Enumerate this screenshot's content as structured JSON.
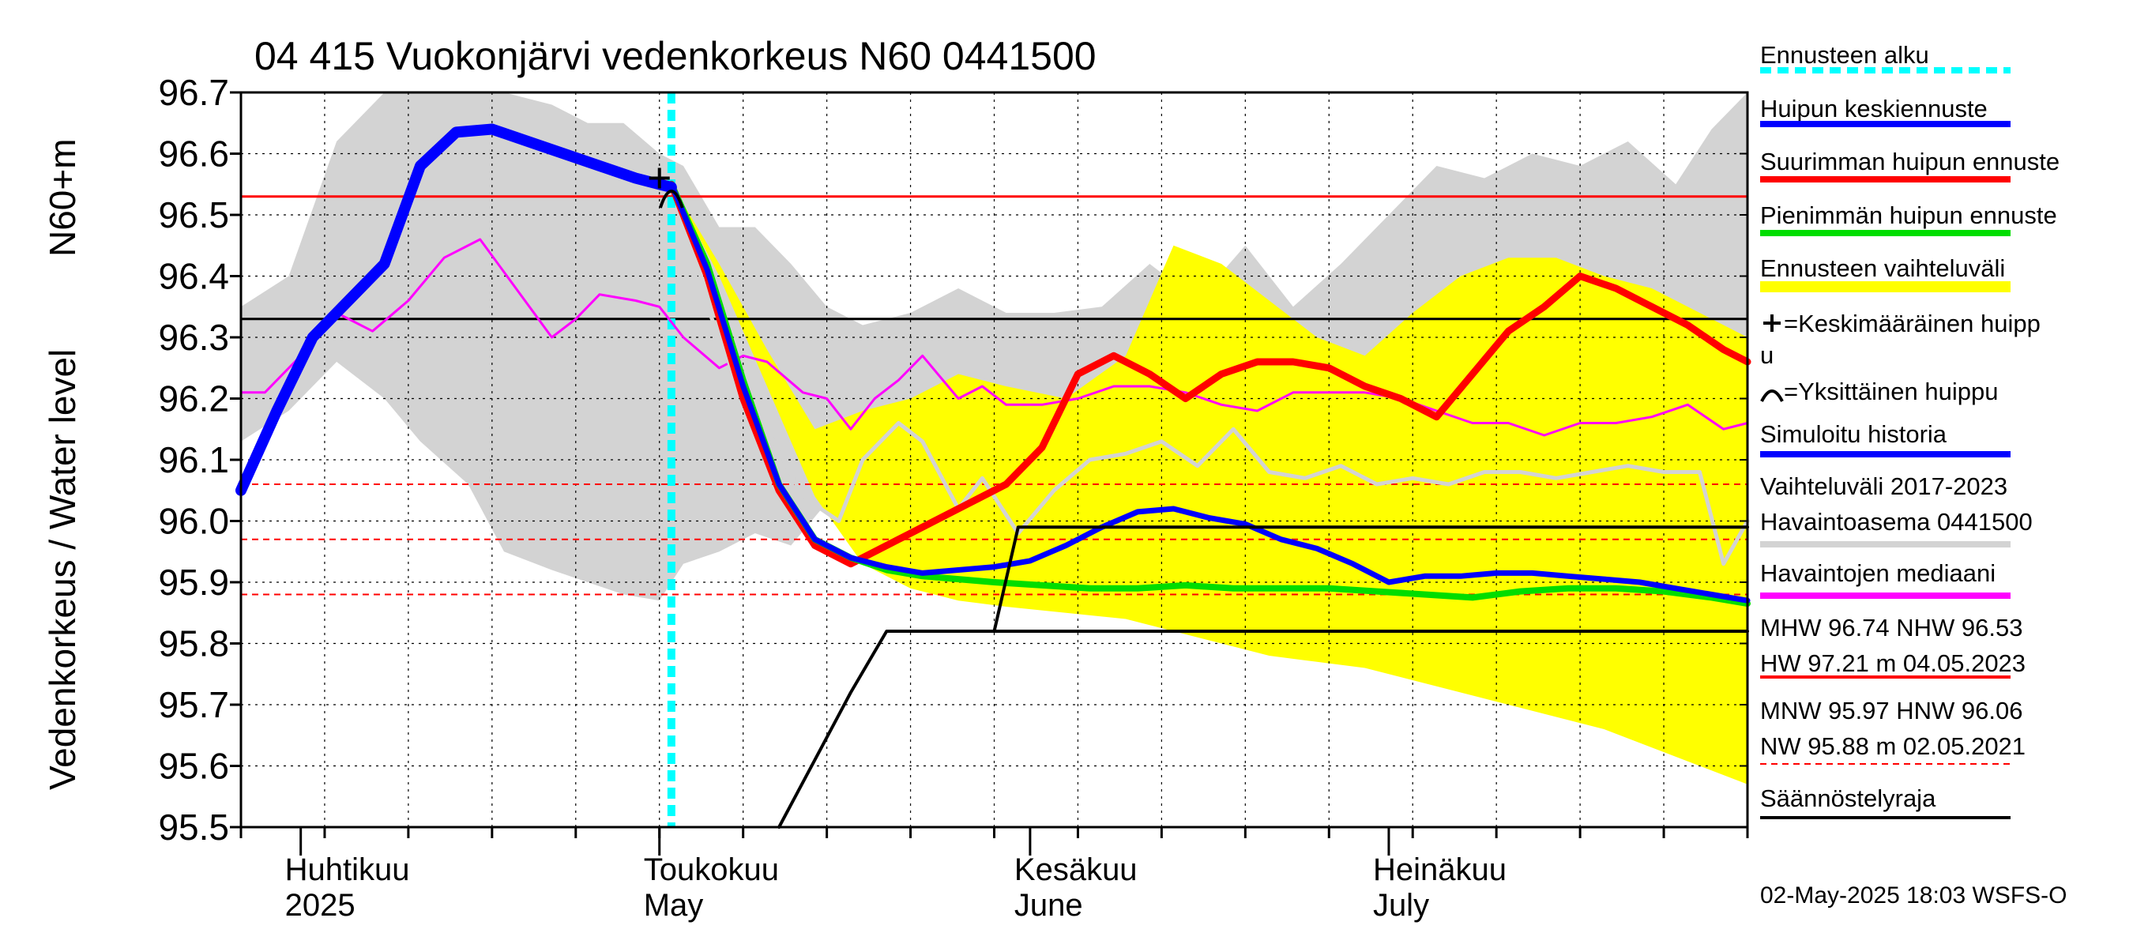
{
  "chart_data": {
    "type": "line",
    "title": "04 415 Vuokonjärvi vedenkorkeus N60 0441500",
    "ylabel": "Vedenkorkeus / Water level",
    "ylabel_unit": "N60+m",
    "ylim": [
      95.5,
      96.7
    ],
    "yticks": [
      "96.7",
      "96.6",
      "96.5",
      "96.4",
      "96.3",
      "96.2",
      "96.1",
      "96.0",
      "95.9",
      "95.8",
      "95.7",
      "95.6",
      "95.5"
    ],
    "xlim": [
      "2025-03-27",
      "2025-07-31"
    ],
    "month_labels": [
      {
        "date": "2025-04-01",
        "fi": "Huhtikuu",
        "en": "2025"
      },
      {
        "date": "2025-05-01",
        "fi": "Toukokuu",
        "en": "May"
      },
      {
        "date": "2025-06-01",
        "fi": "Kesäkuu",
        "en": "June"
      },
      {
        "date": "2025-07-01",
        "fi": "Heinäkuu",
        "en": "July"
      }
    ],
    "grid": true,
    "forecast_start": "2025-05-02",
    "reference_lines": [
      {
        "level": 96.53,
        "style": "solid",
        "color": "#ff0000"
      },
      {
        "level": 96.33,
        "style": "solid",
        "color": "#000000"
      },
      {
        "level": 96.06,
        "style": "dashed",
        "color": "#ff0000"
      },
      {
        "level": 95.97,
        "style": "dashed",
        "color": "#ff0000"
      },
      {
        "level": 95.88,
        "style": "dashed",
        "color": "#ff0000"
      }
    ],
    "series": [
      {
        "name": "Vaihteluväli 2017-2023",
        "kind": "band",
        "color": "#d3d3d3",
        "x": [
          "2025-03-27",
          "2025-03-31",
          "2025-04-04",
          "2025-04-08",
          "2025-04-11",
          "2025-04-15",
          "2025-04-18",
          "2025-04-22",
          "2025-04-25",
          "2025-04-28",
          "2025-05-01",
          "2025-05-03",
          "2025-05-06",
          "2025-05-09",
          "2025-05-12",
          "2025-05-15",
          "2025-05-18",
          "2025-05-22",
          "2025-05-26",
          "2025-05-30",
          "2025-06-03",
          "2025-06-07",
          "2025-06-11",
          "2025-06-15",
          "2025-06-19",
          "2025-06-23",
          "2025-06-27",
          "2025-07-01",
          "2025-07-05",
          "2025-07-09",
          "2025-07-13",
          "2025-07-17",
          "2025-07-21",
          "2025-07-25",
          "2025-07-28",
          "2025-07-31"
        ],
        "upper": [
          96.35,
          96.4,
          96.62,
          96.7,
          96.7,
          96.7,
          96.7,
          96.68,
          96.65,
          96.65,
          96.6,
          96.58,
          96.48,
          96.48,
          96.42,
          96.35,
          96.32,
          96.34,
          96.38,
          96.34,
          96.34,
          96.35,
          96.42,
          96.36,
          96.45,
          96.35,
          96.42,
          96.5,
          96.58,
          96.56,
          96.6,
          96.58,
          96.62,
          96.55,
          96.64,
          96.7
        ],
        "lower": [
          96.13,
          96.18,
          96.26,
          96.2,
          96.13,
          96.06,
          95.95,
          95.92,
          95.9,
          95.88,
          95.87,
          95.93,
          95.95,
          95.98,
          95.96,
          96.03,
          96.06,
          96.06,
          96.05,
          96.08,
          96.08,
          96.09,
          96.1,
          96.09,
          96.1,
          96.1,
          96.09,
          96.1,
          96.11,
          96.11,
          96.12,
          96.11,
          96.12,
          96.11,
          96.1,
          96.06
        ]
      },
      {
        "name": "Ennusteen vaihteluväli",
        "kind": "band",
        "color": "#ffff00",
        "x": [
          "2025-05-02",
          "2025-05-06",
          "2025-05-10",
          "2025-05-14",
          "2025-05-18",
          "2025-05-22",
          "2025-05-26",
          "2025-05-30",
          "2025-06-04",
          "2025-06-09",
          "2025-06-13",
          "2025-06-17",
          "2025-06-21",
          "2025-06-25",
          "2025-06-29",
          "2025-07-03",
          "2025-07-07",
          "2025-07-11",
          "2025-07-15",
          "2025-07-19",
          "2025-07-23",
          "2025-07-27",
          "2025-07-31"
        ],
        "upper": [
          96.55,
          96.42,
          96.28,
          96.15,
          96.18,
          96.2,
          96.24,
          96.22,
          96.2,
          96.27,
          96.45,
          96.42,
          96.36,
          96.3,
          96.27,
          96.34,
          96.4,
          96.43,
          96.43,
          96.4,
          96.38,
          96.34,
          96.3
        ],
        "lower": [
          96.55,
          96.4,
          96.22,
          96.04,
          95.93,
          95.89,
          95.87,
          95.86,
          95.85,
          95.84,
          95.82,
          95.8,
          95.78,
          95.77,
          95.76,
          95.74,
          95.72,
          95.7,
          95.68,
          95.66,
          95.63,
          95.6,
          95.57
        ]
      },
      {
        "name": "Havaintojen mediaani",
        "kind": "line",
        "color": "#ff00ff",
        "x": [
          "2025-03-27",
          "2025-03-29",
          "2025-04-01",
          "2025-04-04",
          "2025-04-07",
          "2025-04-10",
          "2025-04-13",
          "2025-04-16",
          "2025-04-19",
          "2025-04-22",
          "2025-04-24",
          "2025-04-26",
          "2025-04-29",
          "2025-05-01",
          "2025-05-03",
          "2025-05-06",
          "2025-05-08",
          "2025-05-10",
          "2025-05-13",
          "2025-05-15",
          "2025-05-17",
          "2025-05-19",
          "2025-05-21",
          "2025-05-23",
          "2025-05-26",
          "2025-05-28",
          "2025-05-30",
          "2025-06-02",
          "2025-06-05",
          "2025-06-08",
          "2025-06-11",
          "2025-06-14",
          "2025-06-17",
          "2025-06-20",
          "2025-06-23",
          "2025-06-26",
          "2025-06-29",
          "2025-07-02",
          "2025-07-05",
          "2025-07-08",
          "2025-07-11",
          "2025-07-14",
          "2025-07-17",
          "2025-07-20",
          "2025-07-23",
          "2025-07-26",
          "2025-07-29",
          "2025-07-31"
        ],
        "y": [
          96.21,
          96.21,
          96.27,
          96.34,
          96.31,
          96.36,
          96.43,
          96.46,
          96.38,
          96.3,
          96.33,
          96.37,
          96.36,
          96.35,
          96.3,
          96.25,
          96.27,
          96.26,
          96.21,
          96.2,
          96.15,
          96.2,
          96.23,
          96.27,
          96.2,
          96.22,
          96.19,
          96.19,
          96.2,
          96.22,
          96.22,
          96.21,
          96.19,
          96.18,
          96.21,
          96.21,
          96.21,
          96.2,
          96.18,
          96.16,
          96.16,
          96.14,
          96.16,
          96.16,
          96.17,
          96.19,
          96.15,
          96.16
        ]
      },
      {
        "name": "Havaintoasema 0441500",
        "kind": "line",
        "color": "#d3d3d3",
        "x": [
          "2025-05-04",
          "2025-05-07",
          "2025-05-10",
          "2025-05-13",
          "2025-05-16",
          "2025-05-18",
          "2025-05-21",
          "2025-05-23",
          "2025-05-26",
          "2025-05-28",
          "2025-05-31",
          "2025-06-03",
          "2025-06-06",
          "2025-06-09",
          "2025-06-12",
          "2025-06-15",
          "2025-06-18",
          "2025-06-21",
          "2025-06-24",
          "2025-06-27",
          "2025-06-30",
          "2025-07-03",
          "2025-07-06",
          "2025-07-09",
          "2025-07-12",
          "2025-07-15",
          "2025-07-18",
          "2025-07-21",
          "2025-07-24",
          "2025-07-27",
          "2025-07-29",
          "2025-07-31"
        ],
        "y": [
          96.4,
          96.25,
          96.15,
          96.04,
          96.0,
          96.1,
          96.16,
          96.13,
          96.02,
          96.07,
          95.98,
          96.05,
          96.1,
          96.11,
          96.13,
          96.09,
          96.15,
          96.08,
          96.07,
          96.09,
          96.06,
          96.07,
          96.06,
          96.08,
          96.08,
          96.07,
          96.08,
          96.09,
          96.08,
          96.08,
          95.93,
          96.0
        ]
      },
      {
        "name": "Suurimman huipun ennuste",
        "kind": "line",
        "color": "#ff0000",
        "x": [
          "2025-05-02",
          "2025-05-05",
          "2025-05-08",
          "2025-05-11",
          "2025-05-14",
          "2025-05-17",
          "2025-05-19",
          "2025-05-21",
          "2025-05-24",
          "2025-05-27",
          "2025-05-30",
          "2025-06-02",
          "2025-06-05",
          "2025-06-08",
          "2025-06-11",
          "2025-06-14",
          "2025-06-17",
          "2025-06-20",
          "2025-06-23",
          "2025-06-26",
          "2025-06-29",
          "2025-07-02",
          "2025-07-05",
          "2025-07-08",
          "2025-07-11",
          "2025-07-14",
          "2025-07-17",
          "2025-07-20",
          "2025-07-23",
          "2025-07-26",
          "2025-07-29",
          "2025-07-31"
        ],
        "y": [
          96.55,
          96.4,
          96.2,
          96.05,
          95.96,
          95.93,
          95.95,
          95.97,
          96.0,
          96.03,
          96.06,
          96.12,
          96.24,
          96.27,
          96.24,
          96.2,
          96.24,
          96.26,
          96.26,
          96.25,
          96.22,
          96.2,
          96.17,
          96.24,
          96.31,
          96.35,
          96.4,
          96.38,
          96.35,
          96.32,
          96.28,
          96.26
        ]
      },
      {
        "name": "Pienimmän huipun ennuste",
        "kind": "line",
        "color": "#00dd00",
        "x": [
          "2025-05-02",
          "2025-05-05",
          "2025-05-08",
          "2025-05-11",
          "2025-05-14",
          "2025-05-17",
          "2025-05-20",
          "2025-05-23",
          "2025-05-26",
          "2025-05-29",
          "2025-06-02",
          "2025-06-06",
          "2025-06-10",
          "2025-06-14",
          "2025-06-18",
          "2025-06-22",
          "2025-06-26",
          "2025-06-30",
          "2025-07-04",
          "2025-07-08",
          "2025-07-12",
          "2025-07-16",
          "2025-07-20",
          "2025-07-24",
          "2025-07-28",
          "2025-07-31"
        ],
        "y": [
          96.55,
          96.42,
          96.23,
          96.06,
          95.97,
          95.94,
          95.92,
          95.91,
          95.905,
          95.9,
          95.895,
          95.89,
          95.89,
          95.895,
          95.89,
          95.89,
          95.89,
          95.885,
          95.88,
          95.875,
          95.885,
          95.89,
          95.89,
          95.885,
          95.875,
          95.865
        ]
      },
      {
        "name": "Huipun keskiennuste",
        "kind": "line",
        "color": "#0000ff",
        "x": [
          "2025-05-02",
          "2025-05-05",
          "2025-05-08",
          "2025-05-11",
          "2025-05-14",
          "2025-05-17",
          "2025-05-20",
          "2025-05-23",
          "2025-05-26",
          "2025-05-29",
          "2025-06-01",
          "2025-06-04",
          "2025-06-07",
          "2025-06-10",
          "2025-06-13",
          "2025-06-16",
          "2025-06-19",
          "2025-06-22",
          "2025-06-25",
          "2025-06-28",
          "2025-07-01",
          "2025-07-04",
          "2025-07-07",
          "2025-07-10",
          "2025-07-13",
          "2025-07-16",
          "2025-07-19",
          "2025-07-22",
          "2025-07-25",
          "2025-07-28",
          "2025-07-31"
        ],
        "y": [
          96.55,
          96.41,
          96.22,
          96.06,
          95.97,
          95.94,
          95.925,
          95.915,
          95.92,
          95.925,
          95.935,
          95.96,
          95.99,
          96.015,
          96.02,
          96.005,
          95.995,
          95.97,
          95.955,
          95.93,
          95.9,
          95.91,
          95.91,
          95.915,
          95.915,
          95.91,
          95.905,
          95.9,
          95.89,
          95.88,
          95.87
        ]
      },
      {
        "name": "Simuloitu historia",
        "kind": "line",
        "color": "#0000ff",
        "x": [
          "2025-03-27",
          "2025-03-30",
          "2025-04-02",
          "2025-04-05",
          "2025-04-08",
          "2025-04-11",
          "2025-04-14",
          "2025-04-17",
          "2025-04-20",
          "2025-04-23",
          "2025-04-26",
          "2025-04-29",
          "2025-05-01",
          "2025-05-02"
        ],
        "y": [
          96.05,
          96.18,
          96.3,
          96.36,
          96.42,
          96.58,
          96.635,
          96.64,
          96.62,
          96.6,
          96.58,
          96.56,
          96.55,
          96.545
        ]
      },
      {
        "name": "Säännöstelyraja",
        "kind": "line",
        "color": "#000000",
        "x": [
          "2025-05-11",
          "2025-05-14",
          "2025-05-17",
          "2025-05-20",
          "2025-05-23",
          "2025-05-26",
          "2025-05-29",
          "2025-06-01",
          "2025-06-04",
          "2025-06-07"
        ],
        "y": [
          95.5,
          95.61,
          95.72,
          95.82,
          95.82,
          95.82,
          95.82,
          95.82,
          95.82,
          95.82
        ]
      },
      {
        "name": "Säännöstelyraja",
        "kind": "line",
        "color": "#000000",
        "x": [
          "2025-05-29",
          "2025-05-31",
          "2025-07-31"
        ],
        "y": [
          95.82,
          95.99,
          95.99
        ]
      },
      {
        "name": "Säännöstelyraja",
        "kind": "line",
        "color": "#000000",
        "x": [
          "2025-05-31",
          "2025-07-31"
        ],
        "y": [
          95.82,
          95.82
        ]
      }
    ],
    "mean_peak_marker": {
      "date": "2025-05-01",
      "level": 96.56,
      "symbol": "+"
    },
    "single_peak_marker": {
      "date": "2025-05-02",
      "level": 96.54,
      "symbol": "∩"
    },
    "legend": [
      {
        "label": "Ennusteen alku",
        "color": "#00ffff",
        "style": "dotted"
      },
      {
        "label": "Huipun keskiennuste",
        "color": "#0000ff",
        "style": "solid"
      },
      {
        "label": "Suurimman huipun ennuste",
        "color": "#ff0000",
        "style": "solid"
      },
      {
        "label": "Pienimmän huipun ennuste",
        "color": "#00dd00",
        "style": "solid"
      },
      {
        "label": "Ennusteen vaihteluväli",
        "color": "#ffff00",
        "style": "solid"
      },
      {
        "label": "=Keskimääräinen huipp",
        "label2": "u",
        "symbol": "+"
      },
      {
        "label": "=Yksittäinen huippu",
        "symbol": "∩"
      },
      {
        "label": "Simuloitu historia",
        "color": "#0000ff",
        "style": "solid"
      },
      {
        "label": "Vaihteluväli 2017-2023",
        "label2": " Havaintoasema 0441500",
        "color": "#d3d3d3",
        "style": "solid"
      },
      {
        "label": "Havaintojen mediaani",
        "color": "#ff00ff",
        "style": "solid"
      },
      {
        "label": "MHW  96.74 NHW  96.53",
        "label2": "HW  97.21 m 04.05.2023",
        "color": "#ff0000",
        "style": "solid"
      },
      {
        "label": "MNW  95.97 HNW  96.06",
        "label2": "NW  95.88 m 02.05.2021",
        "color": "#ff0000",
        "style": "dashed"
      },
      {
        "label": "Säännöstelyraja",
        "color": "#000000",
        "style": "solid"
      }
    ],
    "footer": "02-May-2025 18:03 WSFS-O"
  }
}
